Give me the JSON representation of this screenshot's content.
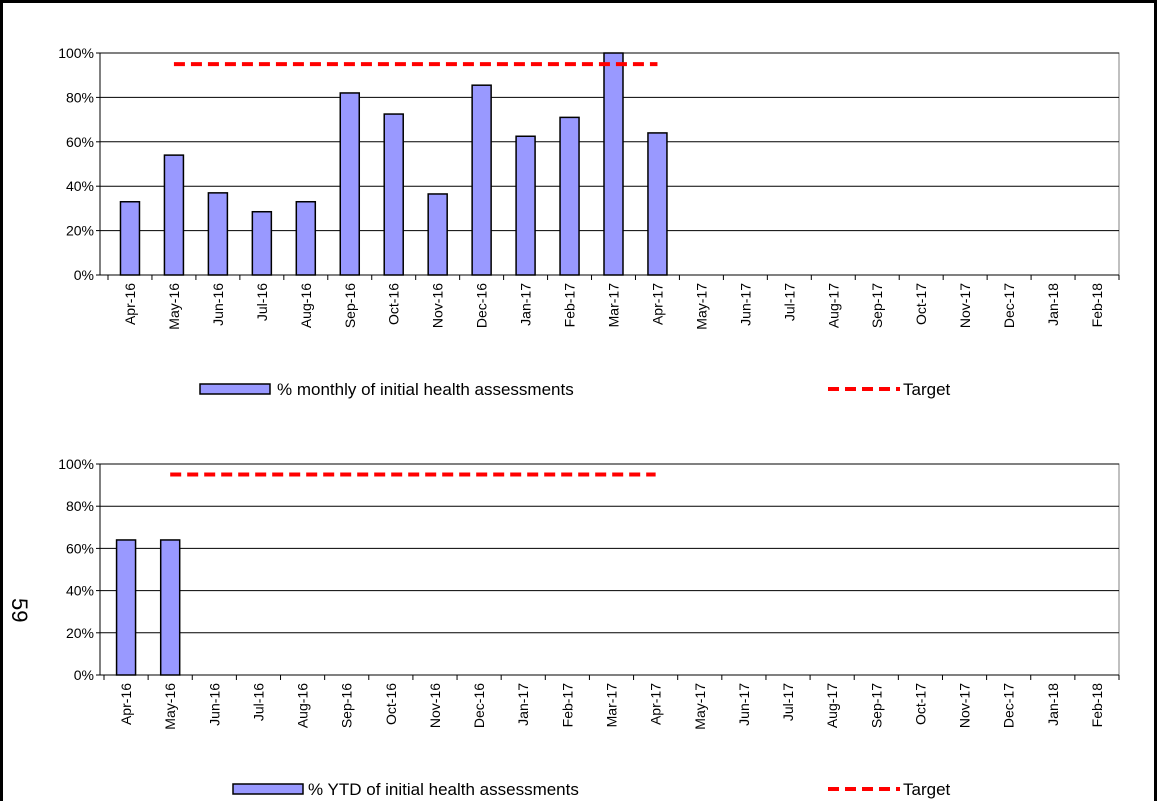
{
  "page_number": "59",
  "chart_data": [
    {
      "type": "bar",
      "categories": [
        "Apr-16",
        "May-16",
        "Jun-16",
        "Jul-16",
        "Aug-16",
        "Sep-16",
        "Oct-16",
        "Nov-16",
        "Dec-16",
        "Jan-17",
        "Feb-17",
        "Mar-17",
        "Apr-17",
        "May-17",
        "Jun-17",
        "Jul-17",
        "Aug-17",
        "Sep-17",
        "Oct-17",
        "Nov-17",
        "Dec-17",
        "Jan-18",
        "Feb-18"
      ],
      "series": [
        {
          "name": "% monthly of initial health assessments",
          "type": "bar",
          "color": "#9999ff",
          "values": [
            33,
            54,
            37,
            28.5,
            33,
            82,
            72.5,
            36.5,
            85.5,
            62.5,
            71,
            100,
            64,
            null,
            null,
            null,
            null,
            null,
            null,
            null,
            null,
            null,
            null
          ]
        },
        {
          "name": "Target",
          "type": "line",
          "color": "#ff0000",
          "values": [
            null,
            95,
            95,
            95,
            95,
            95,
            95,
            95,
            95,
            95,
            95,
            95,
            95,
            null,
            null,
            null,
            null,
            null,
            null,
            null,
            null,
            null,
            null
          ]
        }
      ],
      "ylim": [
        0,
        100
      ],
      "yticks": [
        {
          "value": 0,
          "label": "0%"
        },
        {
          "value": 20,
          "label": "20%"
        },
        {
          "value": 40,
          "label": "40%"
        },
        {
          "value": 60,
          "label": "60%"
        },
        {
          "value": 80,
          "label": "80%"
        },
        {
          "value": 100,
          "label": "100%"
        }
      ],
      "grid": true
    },
    {
      "type": "bar",
      "categories": [
        "Apr-16",
        "May-16",
        "Jun-16",
        "Jul-16",
        "Aug-16",
        "Sep-16",
        "Oct-16",
        "Nov-16",
        "Dec-16",
        "Jan-17",
        "Feb-17",
        "Mar-17",
        "Apr-17",
        "May-17",
        "Jun-17",
        "Jul-17",
        "Aug-17",
        "Sep-17",
        "Oct-17",
        "Nov-17",
        "Dec-17",
        "Jan-18",
        "Feb-18"
      ],
      "series": [
        {
          "name": "% YTD of initial health assessments",
          "type": "bar",
          "color": "#9999ff",
          "values": [
            64,
            64,
            null,
            null,
            null,
            null,
            null,
            null,
            null,
            null,
            null,
            null,
            null,
            null,
            null,
            null,
            null,
            null,
            null,
            null,
            null,
            null,
            null
          ]
        },
        {
          "name": "Target",
          "type": "line",
          "color": "#ff0000",
          "values": [
            null,
            95,
            95,
            95,
            95,
            95,
            95,
            95,
            95,
            95,
            95,
            95,
            95,
            null,
            null,
            null,
            null,
            null,
            null,
            null,
            null,
            null,
            null
          ]
        }
      ],
      "ylim": [
        0,
        100
      ],
      "yticks": [
        {
          "value": 0,
          "label": "0%"
        },
        {
          "value": 20,
          "label": "20%"
        },
        {
          "value": 40,
          "label": "40%"
        },
        {
          "value": 60,
          "label": "60%"
        },
        {
          "value": 80,
          "label": "80%"
        },
        {
          "value": 100,
          "label": "100%"
        }
      ],
      "grid": true
    }
  ]
}
